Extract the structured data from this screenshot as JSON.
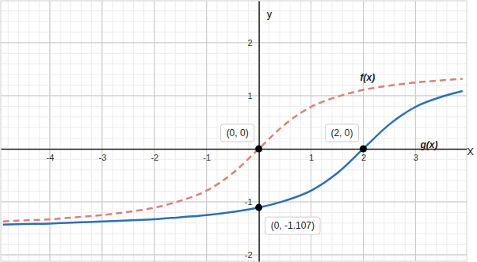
{
  "chart_data": {
    "type": "line",
    "x_label": "X",
    "y_label": "y",
    "x": [
      -4.9,
      -4.5,
      -4,
      -3.5,
      -3,
      -2.5,
      -2,
      -1.5,
      -1,
      -0.5,
      0,
      0.5,
      1,
      1.5,
      2,
      2.5,
      3,
      3.5,
      3.9
    ],
    "series": [
      {
        "name": "f(x)",
        "color": "#d9827a",
        "line_style": "dashed",
        "values": [
          -1.37,
          -1.35,
          -1.33,
          -1.29,
          -1.25,
          -1.19,
          -1.11,
          -0.98,
          -0.79,
          -0.46,
          0,
          0.46,
          0.79,
          0.98,
          1.11,
          1.19,
          1.25,
          1.29,
          1.32
        ]
      },
      {
        "name": "g(x)",
        "color": "#2d70b3",
        "line_style": "solid",
        "values": [
          -1.43,
          -1.42,
          -1.41,
          -1.39,
          -1.37,
          -1.35,
          -1.33,
          -1.29,
          -1.25,
          -1.19,
          -1.11,
          -0.98,
          -0.79,
          -0.46,
          0,
          0.46,
          0.79,
          0.98,
          1.09
        ]
      }
    ],
    "annotations": [
      {
        "x": 0,
        "y": 0,
        "label": "(0, 0)"
      },
      {
        "x": 2,
        "y": 0,
        "label": "(2, 0)"
      },
      {
        "x": 0,
        "y": -1.107,
        "label": "(0, -1.107)"
      }
    ],
    "xlim": [
      -4.94,
      3.98
    ],
    "ylim": [
      -2.12,
      2.79
    ],
    "xticks": [
      -4,
      -3,
      -2,
      -1,
      1,
      2,
      3
    ],
    "yticks": [
      -2,
      -1,
      1,
      2
    ],
    "grid": true
  }
}
